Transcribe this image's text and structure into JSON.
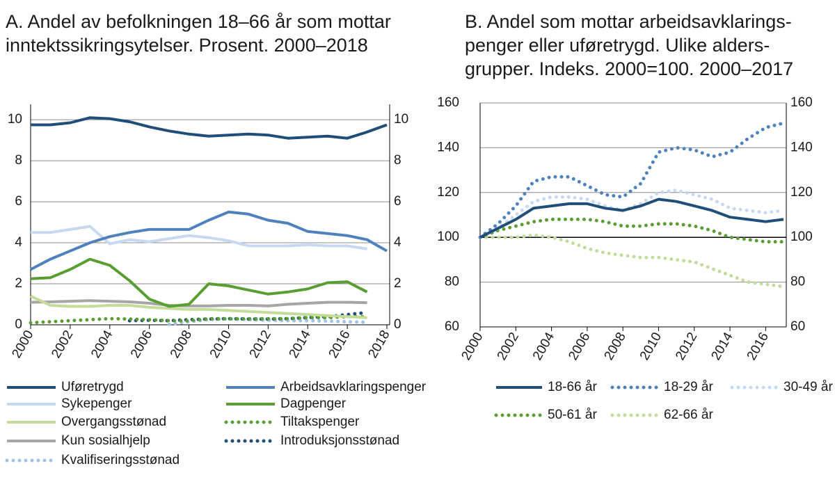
{
  "chart_data": [
    {
      "type": "line",
      "title": [
        "A. Andel av befolkningen 18–66 år som mottar",
        "inntektssikringsytelser. Prosent. 2000–2018"
      ],
      "x": [
        2000,
        2001,
        2002,
        2003,
        2004,
        2005,
        2006,
        2007,
        2008,
        2009,
        2010,
        2011,
        2012,
        2013,
        2014,
        2015,
        2016,
        2017,
        2018
      ],
      "xlim": [
        2000,
        2018
      ],
      "xticks": [
        2000,
        2002,
        2004,
        2006,
        2008,
        2010,
        2012,
        2014,
        2016,
        2018
      ],
      "ylim": [
        0,
        10.75
      ],
      "yticks": [
        0,
        2,
        4,
        6,
        8,
        10
      ],
      "grid": true,
      "right_axis_labels": true,
      "series": [
        {
          "name": "Uføretrygd",
          "color": "#1f4e79",
          "style": "solid",
          "values": [
            9.75,
            9.75,
            9.85,
            10.1,
            10.05,
            9.9,
            9.65,
            9.45,
            9.3,
            9.2,
            9.25,
            9.3,
            9.25,
            9.1,
            9.15,
            9.2,
            9.1,
            9.4,
            9.75
          ]
        },
        {
          "name": "Arbeidsavklaringspenger",
          "color": "#4f81bd",
          "style": "solid",
          "values": [
            2.7,
            3.2,
            3.6,
            4.0,
            4.3,
            4.5,
            4.65,
            4.65,
            4.65,
            5.1,
            5.5,
            5.4,
            5.1,
            4.95,
            4.55,
            4.45,
            4.35,
            4.15,
            3.6
          ]
        },
        {
          "name": "Sykepenger",
          "color": "#c6d9f1",
          "style": "solid",
          "values": [
            4.5,
            4.5,
            4.65,
            4.8,
            3.95,
            4.15,
            4.05,
            4.2,
            4.35,
            4.25,
            4.1,
            3.85,
            3.85,
            3.85,
            3.9,
            3.85,
            3.85,
            3.7,
            null
          ]
        },
        {
          "name": "Dagpenger",
          "color": "#5a9e33",
          "style": "solid",
          "values": [
            2.25,
            2.3,
            2.7,
            3.2,
            2.9,
            2.15,
            1.25,
            0.9,
            1.0,
            2.0,
            1.9,
            1.7,
            1.5,
            1.6,
            1.75,
            2.05,
            2.1,
            1.6,
            null
          ]
        },
        {
          "name": "Overgangsstønad",
          "color": "#c3dc9a",
          "style": "solid",
          "values": [
            1.4,
            0.95,
            0.9,
            0.9,
            0.95,
            0.95,
            0.85,
            0.8,
            0.75,
            0.75,
            0.7,
            0.65,
            0.6,
            0.55,
            0.5,
            0.45,
            0.4,
            0.35,
            null
          ]
        },
        {
          "name": "Tiltakspenger",
          "color": "#5a9e33",
          "style": "dotted",
          "values": [
            0.1,
            0.15,
            0.2,
            0.25,
            0.3,
            0.28,
            0.25,
            0.2,
            0.2,
            0.3,
            0.3,
            0.3,
            0.3,
            0.3,
            0.35,
            0.35,
            0.4,
            0.4,
            null
          ]
        },
        {
          "name": "Kun sosialhjelp",
          "color": "#a6a6a6",
          "style": "solid",
          "values": [
            1.1,
            1.12,
            1.15,
            1.18,
            1.15,
            1.12,
            1.05,
            0.95,
            0.92,
            0.92,
            0.95,
            0.95,
            0.92,
            1.0,
            1.05,
            1.1,
            1.1,
            1.08,
            null
          ]
        },
        {
          "name": "Introduksjonsstønad",
          "color": "#1f4e79",
          "style": "dotted",
          "values": [
            null,
            null,
            null,
            null,
            null,
            0.2,
            0.22,
            0.2,
            0.25,
            0.28,
            0.3,
            0.28,
            0.28,
            0.3,
            0.35,
            0.4,
            0.5,
            0.6,
            null
          ]
        },
        {
          "name": "Kvalifiseringsstønad",
          "color": "#9dc3e6",
          "style": "dotted",
          "values": [
            null,
            null,
            null,
            null,
            null,
            null,
            null,
            0.02,
            0.15,
            0.25,
            0.28,
            0.25,
            0.22,
            0.2,
            0.2,
            0.18,
            0.15,
            0.12,
            null
          ]
        }
      ]
    },
    {
      "type": "line",
      "title": [
        "B. Andel som mottar arbeidsavklarings-",
        "penger eller uføretrygd. Ulike alders-",
        "grupper. Indeks. 2000=100. 2000–2017"
      ],
      "x": [
        2000,
        2001,
        2002,
        2003,
        2004,
        2005,
        2006,
        2007,
        2008,
        2009,
        2010,
        2011,
        2012,
        2013,
        2014,
        2015,
        2016,
        2017
      ],
      "xlim": [
        2000,
        2017
      ],
      "xticks": [
        2000,
        2002,
        2004,
        2006,
        2008,
        2010,
        2012,
        2014,
        2016
      ],
      "ylim": [
        60,
        160
      ],
      "yticks": [
        60,
        80,
        100,
        120,
        140,
        160
      ],
      "grid": true,
      "right_axis_labels": true,
      "reference_line": 100,
      "series": [
        {
          "name": "18-66 år",
          "color": "#1f4e79",
          "style": "solid",
          "values": [
            100,
            104,
            108,
            113,
            114,
            115,
            115,
            113,
            112,
            114,
            117,
            116,
            114,
            112,
            109,
            108,
            107,
            108
          ]
        },
        {
          "name": "18-29 år",
          "color": "#4f81bd",
          "style": "dotted",
          "values": [
            100,
            106,
            114,
            125,
            127,
            127,
            123,
            119,
            118,
            124,
            138,
            140,
            139,
            136,
            138,
            144,
            149,
            151
          ]
        },
        {
          "name": "30-49 år",
          "color": "#c6d9f1",
          "style": "dotted",
          "values": [
            100,
            104,
            110,
            116,
            118,
            118,
            117,
            114,
            112,
            115,
            120,
            121,
            119,
            117,
            113,
            112,
            111,
            112
          ]
        },
        {
          "name": "50-61 år",
          "color": "#5a9e33",
          "style": "dotted",
          "values": [
            100,
            103,
            105,
            107,
            108,
            108,
            108,
            107,
            105,
            105,
            106,
            106,
            105,
            103,
            100,
            99,
            98,
            98
          ]
        },
        {
          "name": "62-66 år",
          "color": "#c3dc9a",
          "style": "dotted",
          "values": [
            100,
            100,
            100,
            101,
            100,
            98,
            95,
            93,
            92,
            91,
            91,
            90,
            89,
            86,
            83,
            80,
            79,
            78
          ]
        }
      ]
    }
  ]
}
